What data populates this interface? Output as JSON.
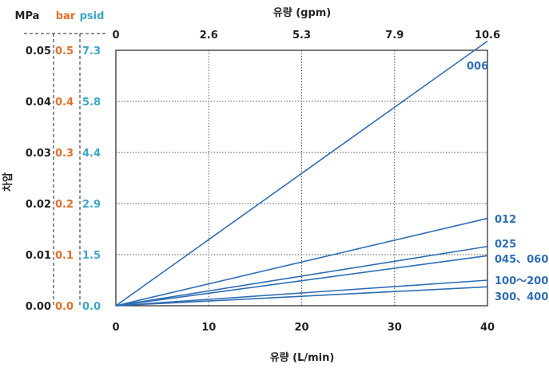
{
  "chart_data": {
    "type": "line",
    "x_title": "유량 (L/min)",
    "x2_title": "유량 (gpm)",
    "y_title": "차압",
    "units": {
      "mpa": "MPa",
      "bar": "bar",
      "psid": "psid"
    },
    "xlim": [
      0,
      40
    ],
    "ylim": [
      0,
      0.05
    ],
    "x_ticks": [
      "0",
      "10",
      "20",
      "30",
      "40"
    ],
    "x_tick_values": [
      0,
      10,
      20,
      30,
      40
    ],
    "x2_ticks": [
      "0",
      "2.6",
      "5.3",
      "7.9",
      "10.6"
    ],
    "y_tick_values": [
      0,
      0.01,
      0.02,
      0.03,
      0.04,
      0.05
    ],
    "y_ticks_mpa": [
      "0.00",
      "0.01",
      "0.02",
      "0.03",
      "0.04",
      "0.05"
    ],
    "y_ticks_bar": [
      "0.0",
      "0.1",
      "0.2",
      "0.3",
      "0.4",
      "0.5"
    ],
    "y_ticks_psid": [
      "0.0",
      "1.5",
      "2.9",
      "4.4",
      "5.8",
      "7.3"
    ],
    "grid": true,
    "colors": {
      "line": "#2e6db4",
      "label": "#2e6db4",
      "bar": "#e0702a",
      "psid": "#3aa6c9",
      "mpa": "#222222"
    },
    "series": [
      {
        "name": "006",
        "x": [
          0,
          40
        ],
        "y": [
          0,
          0.0518
        ]
      },
      {
        "name": "012",
        "x": [
          0,
          40
        ],
        "y": [
          0,
          0.0171
        ]
      },
      {
        "name": "025",
        "x": [
          0,
          40
        ],
        "y": [
          0,
          0.0116
        ]
      },
      {
        "name": "045、060",
        "x": [
          0,
          40
        ],
        "y": [
          0,
          0.0098
        ]
      },
      {
        "name": "100～200",
        "x": [
          0,
          40
        ],
        "y": [
          0,
          0.005
        ]
      },
      {
        "name": "300、400",
        "x": [
          0,
          40
        ],
        "y": [
          0,
          0.0037
        ]
      }
    ]
  }
}
